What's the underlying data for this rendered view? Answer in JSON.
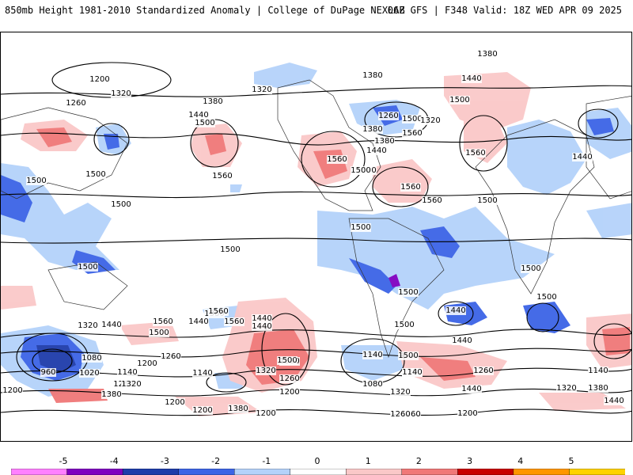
{
  "header": {
    "left_title": "850mb Height 1981-2010 Standardized Anomaly | College of DuPage NEXLAB",
    "right_title": "06Z GFS | F348 Valid: 18Z WED APR 09 2025"
  },
  "colorbar": {
    "ticks": [
      "-5",
      "-4",
      "-3",
      "-2",
      "-1",
      "0",
      "1",
      "2",
      "3",
      "4",
      "5"
    ],
    "colors": [
      "#ff80ff",
      "#8000c0",
      "#1e3caa",
      "#3c64e6",
      "#b4d2fa",
      "#ffffff",
      "#fac8c8",
      "#f07878",
      "#c80000",
      "#ff9600",
      "#ffd200"
    ]
  },
  "contour_labels": [
    "1380",
    "1200",
    "1320",
    "1260",
    "1380",
    "1440",
    "1500",
    "1560",
    "1320",
    "1380",
    "1500",
    "1560",
    "1440",
    "1380",
    "1500",
    "1560",
    "1320",
    "1260",
    "1380",
    "1440",
    "1500",
    "1560",
    "1500",
    "1560",
    "1500",
    "1440",
    "1560",
    "1500",
    "1500",
    "1500",
    "1500",
    "1500",
    "1500",
    "1500",
    "1500",
    "1440",
    "1500",
    "1380",
    "1440",
    "1560",
    "1500",
    "1320",
    "1440",
    "1260",
    "1200",
    "1080",
    "1020",
    "960",
    "1140",
    "1260",
    "1320",
    "1200",
    "1380",
    "1500",
    "1260",
    "1200",
    "1320",
    "1140",
    "1200",
    "1080",
    "1140",
    "1200",
    "1260",
    "1140",
    "1200",
    "1200",
    "1440",
    "1320",
    "1380",
    "1440",
    "1140",
    "1200",
    "1260",
    "1380",
    "1200",
    "1500",
    "1440",
    "1320",
    "1260",
    "1500",
    "1500",
    "1560",
    "1440",
    "1560",
    "1440"
  ]
}
